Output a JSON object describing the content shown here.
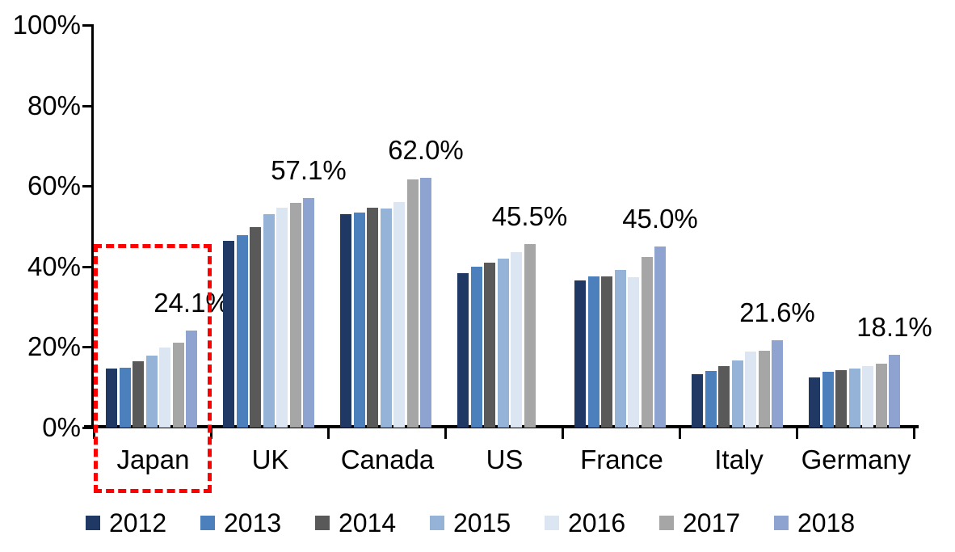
{
  "chart_data": {
    "type": "bar",
    "title": "",
    "xlabel": "",
    "ylabel": "",
    "ylim": [
      0,
      100
    ],
    "grid": false,
    "legend_position": "bottom",
    "y_ticks": [
      "100%",
      "80%",
      "60%",
      "40%",
      "20%",
      "0%"
    ],
    "categories": [
      "Japan",
      "UK",
      "Canada",
      "US",
      "France",
      "Italy",
      "Germany"
    ],
    "series": [
      {
        "name": "2012",
        "color": "#1F3864",
        "values": [
          14.6,
          46.4,
          53.0,
          38.3,
          36.5,
          13.3,
          12.4
        ]
      },
      {
        "name": "2013",
        "color": "#4C80BD",
        "values": [
          14.9,
          47.8,
          53.4,
          40.0,
          37.5,
          14.1,
          13.9
        ]
      },
      {
        "name": "2014",
        "color": "#595959",
        "values": [
          16.5,
          49.9,
          54.7,
          40.9,
          37.5,
          15.3,
          14.3
        ]
      },
      {
        "name": "2015",
        "color": "#95B3D7",
        "values": [
          17.9,
          53.1,
          54.5,
          42.0,
          39.2,
          16.7,
          14.7
        ]
      },
      {
        "name": "2016",
        "color": "#DCE6F2",
        "values": [
          19.8,
          54.7,
          56.1,
          43.5,
          37.3,
          18.9,
          15.2
        ]
      },
      {
        "name": "2017",
        "color": "#A6A6A6",
        "values": [
          21.0,
          55.8,
          61.6,
          45.5,
          42.3,
          19.1,
          15.8
        ]
      },
      {
        "name": "2018",
        "color": "#8EA3CF",
        "values": [
          24.1,
          57.1,
          62.0,
          null,
          45.0,
          21.6,
          18.1
        ]
      }
    ],
    "data_labels": [
      "24.1%",
      "57.1%",
      "62.0%",
      "45.5%",
      "45.0%",
      "21.6%",
      "18.1%"
    ],
    "annotations": {
      "highlight_box": {
        "target": "Japan",
        "color": "#FF0000",
        "style": "dashed"
      }
    },
    "axis_color": "#000000",
    "label_color": "#000000"
  }
}
